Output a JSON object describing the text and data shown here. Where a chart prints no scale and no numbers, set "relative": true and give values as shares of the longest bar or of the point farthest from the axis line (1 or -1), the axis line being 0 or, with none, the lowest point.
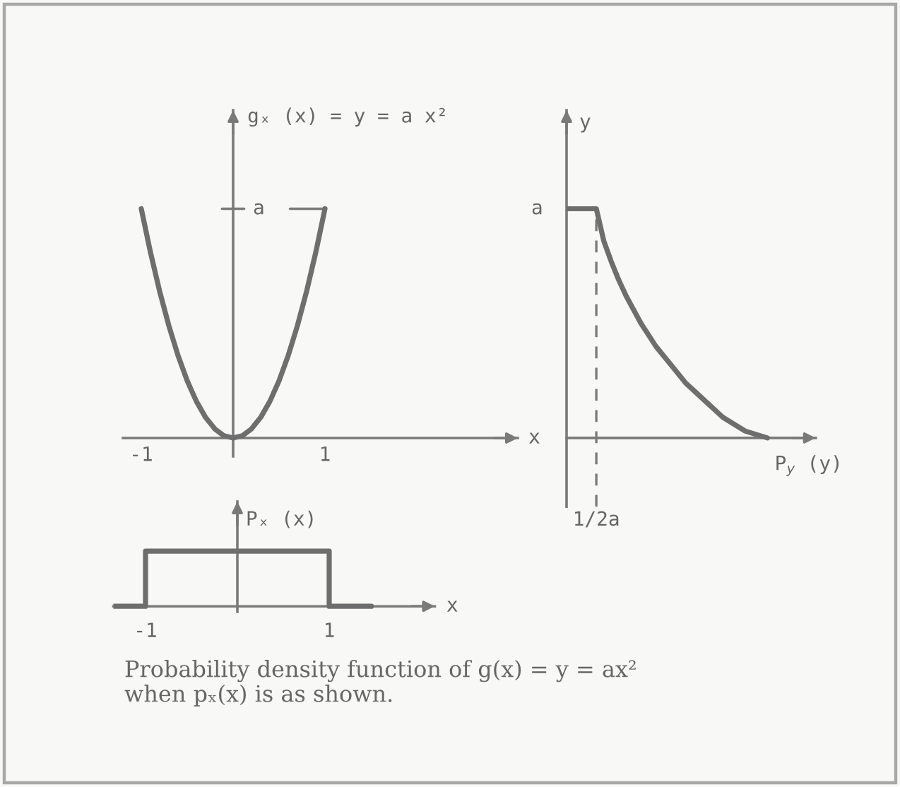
{
  "chart_data": [
    {
      "type": "line",
      "ylabel": "gₓ (x) = y = a x²",
      "xlabel": "x",
      "x": [
        -1,
        -0.9,
        -0.8,
        -0.7,
        -0.6,
        -0.5,
        -0.4,
        -0.3,
        -0.2,
        -0.1,
        0,
        0.1,
        0.2,
        0.3,
        0.4,
        0.5,
        0.6,
        0.7,
        0.8,
        0.9,
        1
      ],
      "values": [
        1,
        0.81,
        0.64,
        0.49,
        0.36,
        0.25,
        0.16,
        0.09,
        0.04,
        0.01,
        0,
        0.01,
        0.04,
        0.09,
        0.16,
        0.25,
        0.36,
        0.49,
        0.64,
        0.81,
        1
      ],
      "color": "#6e6e6e",
      "relative": true,
      "xlim": [
        -1.2,
        3.1
      ],
      "xticks": [
        -1,
        1
      ],
      "tick_labels": "x",
      "ref_lines": [
        {
          "axis": "y",
          "value": 1,
          "label": "a"
        }
      ]
    },
    {
      "type": "line",
      "ylabel": "y",
      "xlabel": "P$_{y}$ (y)",
      "categories": [
        null,
        null,
        null,
        null,
        null,
        null,
        null,
        null,
        null,
        null,
        null,
        null,
        null,
        null,
        null,
        null,
        null,
        null,
        null,
        null,
        null,
        null,
        null,
        null,
        null,
        null,
        null,
        null
      ],
      "values": [
        1,
        1,
        1,
        1,
        1,
        0.86,
        0.77,
        0.69,
        0.62,
        0.56,
        0.5,
        0.45,
        0.4,
        0.36,
        0.32,
        0.28,
        0.24,
        0.21,
        0.18,
        0.15,
        0.12,
        0.09,
        0.07,
        0.05,
        0.03,
        0.02,
        0.01,
        0
      ],
      "color": "#6e6e6e",
      "relative": true,
      "tick_labels": false,
      "annotations": [
        "a",
        {
          "text": "1/2a",
          "y": 1
        }
      ]
    },
    {
      "type": "step",
      "ylabel": "Pₓ (x)",
      "xlabel": "x",
      "x": [
        -1.35,
        -1,
        1,
        1.46
      ],
      "values": [
        0,
        1,
        0,
        0
      ],
      "color": "#6e6e6e",
      "relative": true,
      "xlim": [
        -1.35,
        2.15
      ],
      "xticks": [
        -1,
        1
      ],
      "tick_labels": "x"
    },
    {
      "type": "other",
      "annotations": [
        "Probability density function of g(x) = y = ax²\nwhen pₓ(x) is as shown."
      ]
    }
  ]
}
